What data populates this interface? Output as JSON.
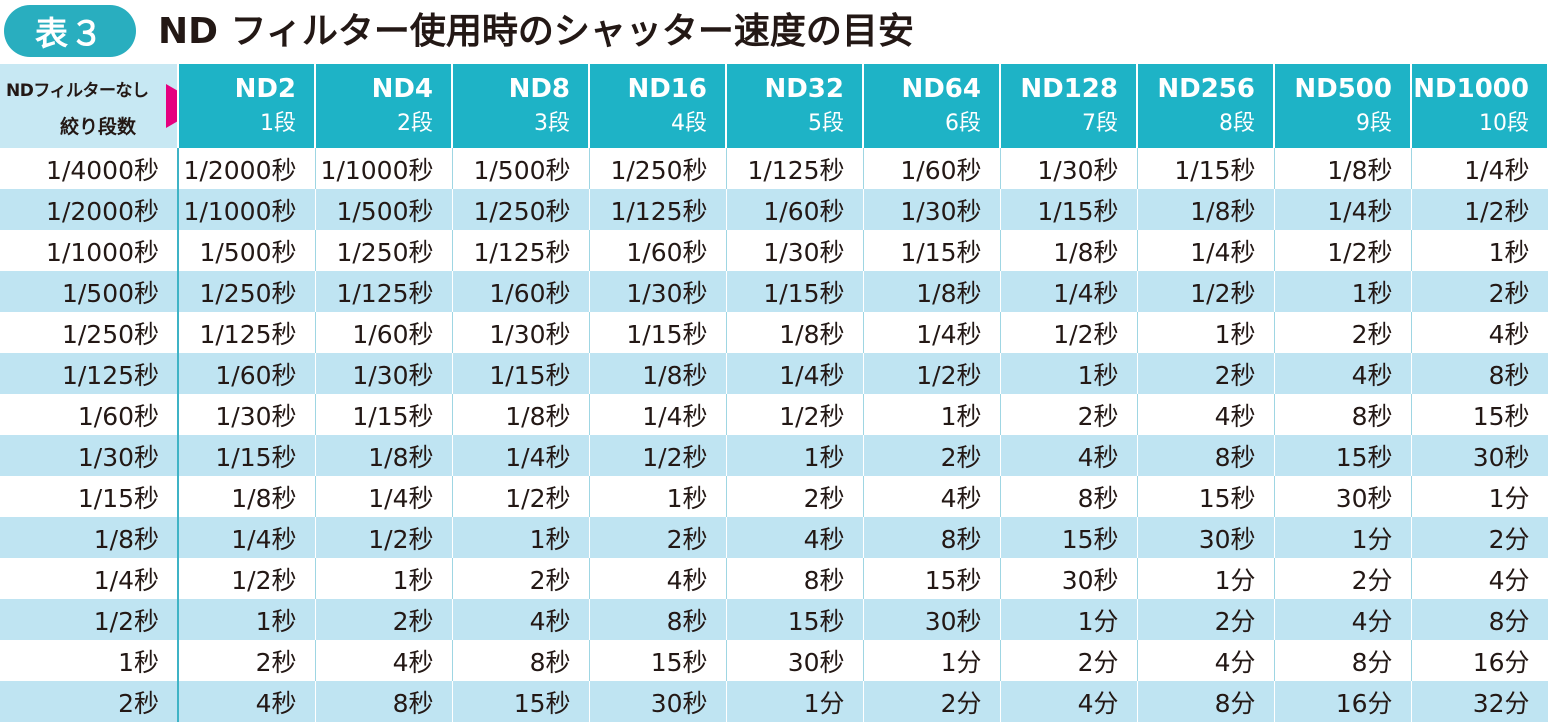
{
  "title": {
    "badge": "表３",
    "text": "ND フィルター使用時のシャッター速度の目安"
  },
  "table": {
    "corner": {
      "line1": "NDフィルターなし",
      "line2": "絞り段数"
    },
    "headers": [
      {
        "nd": "ND2",
        "stop": "1段"
      },
      {
        "nd": "ND4",
        "stop": "2段"
      },
      {
        "nd": "ND8",
        "stop": "3段"
      },
      {
        "nd": "ND16",
        "stop": "4段"
      },
      {
        "nd": "ND32",
        "stop": "5段"
      },
      {
        "nd": "ND64",
        "stop": "6段"
      },
      {
        "nd": "ND128",
        "stop": "7段"
      },
      {
        "nd": "ND256",
        "stop": "8段"
      },
      {
        "nd": "ND500",
        "stop": "9段"
      },
      {
        "nd": "ND1000",
        "stop": "10段"
      }
    ],
    "rows": [
      [
        "1/4000秒",
        "1/2000秒",
        "1/1000秒",
        "1/500秒",
        "1/250秒",
        "1/125秒",
        "1/60秒",
        "1/30秒",
        "1/15秒",
        "1/8秒",
        "1/4秒"
      ],
      [
        "1/2000秒",
        "1/1000秒",
        "1/500秒",
        "1/250秒",
        "1/125秒",
        "1/60秒",
        "1/30秒",
        "1/15秒",
        "1/8秒",
        "1/4秒",
        "1/2秒"
      ],
      [
        "1/1000秒",
        "1/500秒",
        "1/250秒",
        "1/125秒",
        "1/60秒",
        "1/30秒",
        "1/15秒",
        "1/8秒",
        "1/4秒",
        "1/2秒",
        "1秒"
      ],
      [
        "1/500秒",
        "1/250秒",
        "1/125秒",
        "1/60秒",
        "1/30秒",
        "1/15秒",
        "1/8秒",
        "1/4秒",
        "1/2秒",
        "1秒",
        "2秒"
      ],
      [
        "1/250秒",
        "1/125秒",
        "1/60秒",
        "1/30秒",
        "1/15秒",
        "1/8秒",
        "1/4秒",
        "1/2秒",
        "1秒",
        "2秒",
        "4秒"
      ],
      [
        "1/125秒",
        "1/60秒",
        "1/30秒",
        "1/15秒",
        "1/8秒",
        "1/4秒",
        "1/2秒",
        "1秒",
        "2秒",
        "4秒",
        "8秒"
      ],
      [
        "1/60秒",
        "1/30秒",
        "1/15秒",
        "1/8秒",
        "1/4秒",
        "1/2秒",
        "1秒",
        "2秒",
        "4秒",
        "8秒",
        "15秒"
      ],
      [
        "1/30秒",
        "1/15秒",
        "1/8秒",
        "1/4秒",
        "1/2秒",
        "1秒",
        "2秒",
        "4秒",
        "8秒",
        "15秒",
        "30秒"
      ],
      [
        "1/15秒",
        "1/8秒",
        "1/4秒",
        "1/2秒",
        "1秒",
        "2秒",
        "4秒",
        "8秒",
        "15秒",
        "30秒",
        "1分"
      ],
      [
        "1/8秒",
        "1/4秒",
        "1/2秒",
        "1秒",
        "2秒",
        "4秒",
        "8秒",
        "15秒",
        "30秒",
        "1分",
        "2分"
      ],
      [
        "1/4秒",
        "1/2秒",
        "1秒",
        "2秒",
        "4秒",
        "8秒",
        "15秒",
        "30秒",
        "1分",
        "2分",
        "4分"
      ],
      [
        "1/2秒",
        "1秒",
        "2秒",
        "4秒",
        "8秒",
        "15秒",
        "30秒",
        "1分",
        "2分",
        "4分",
        "8分"
      ],
      [
        "1秒",
        "2秒",
        "4秒",
        "8秒",
        "15秒",
        "30秒",
        "1分",
        "2分",
        "4分",
        "8分",
        "16分"
      ],
      [
        "2秒",
        "4秒",
        "8秒",
        "15秒",
        "30秒",
        "1分",
        "2分",
        "4分",
        "8分",
        "16分",
        "32分"
      ]
    ]
  },
  "colors": {
    "badge": "#29aebf",
    "header": "#1eb3c6",
    "corner": "#c7e8f3",
    "stripe": "#bfe4f2",
    "arrow": "#e5007f"
  },
  "icons": {
    "corner_arrow": "play-triangle-icon"
  }
}
